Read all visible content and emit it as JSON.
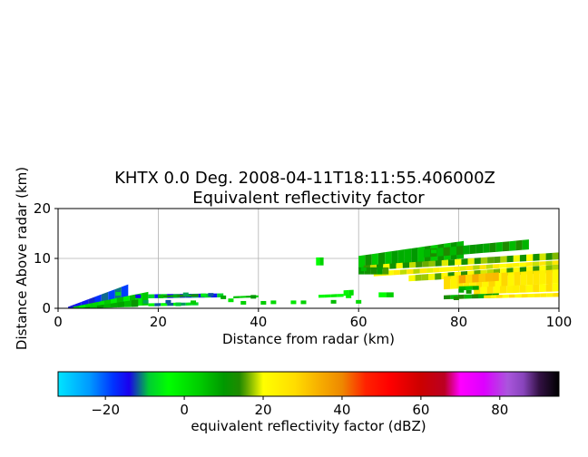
{
  "chart_data": {
    "type": "heatmap",
    "title": [
      "KHTX 0.0 Deg. 2008-04-11T18:11:55.406000Z",
      "Equivalent reflectivity factor"
    ],
    "xlabel": "Distance from radar (km)",
    "ylabel": "Distance Above radar  (km)",
    "xlim": [
      0,
      100
    ],
    "ylim": [
      0,
      20
    ],
    "xticks": [
      0,
      20,
      40,
      60,
      80,
      100
    ],
    "yticks": [
      0,
      10,
      20
    ],
    "grid": true,
    "colorbar": {
      "label": "equivalent reflectivity factor (dBZ)",
      "range": [
        -32,
        95
      ],
      "ticks": [
        -20,
        0,
        20,
        40,
        60,
        80
      ],
      "tick_labels": [
        "−20",
        "0",
        "20",
        "40",
        "60",
        "80"
      ],
      "stops": [
        {
          "v": -32,
          "c": "#00e5ff"
        },
        {
          "v": -24,
          "c": "#0099ff"
        },
        {
          "v": -18,
          "c": "#0033ff"
        },
        {
          "v": -14,
          "c": "#1a00ee"
        },
        {
          "v": -9,
          "c": "#00cc33"
        },
        {
          "v": -4,
          "c": "#00ff00"
        },
        {
          "v": 4,
          "c": "#00cc00"
        },
        {
          "v": 10,
          "c": "#009900"
        },
        {
          "v": 14,
          "c": "#1f8a00"
        },
        {
          "v": 16,
          "c": "#66aa00"
        },
        {
          "v": 20,
          "c": "#ffff00"
        },
        {
          "v": 28,
          "c": "#ffdd00"
        },
        {
          "v": 34,
          "c": "#f7b000"
        },
        {
          "v": 40,
          "c": "#ee8800"
        },
        {
          "v": 46,
          "c": "#ff2200"
        },
        {
          "v": 52,
          "c": "#ff0000"
        },
        {
          "v": 60,
          "c": "#cc0000"
        },
        {
          "v": 66,
          "c": "#bb0022"
        },
        {
          "v": 70,
          "c": "#ff00ff"
        },
        {
          "v": 76,
          "c": "#dd00ff"
        },
        {
          "v": 82,
          "c": "#aa55dd"
        },
        {
          "v": 86,
          "c": "#8844bb"
        },
        {
          "v": 90,
          "c": "#331144"
        },
        {
          "v": 95,
          "c": "#000000"
        }
      ]
    },
    "echoes": [
      {
        "x0": 2,
        "x1": 14,
        "y0_start": 0.0,
        "y0_end": 0.6,
        "y1_start": 0.3,
        "y1_end": 4.8,
        "dbz": -15
      },
      {
        "x0": 3,
        "x1": 18,
        "y0_start": 0.0,
        "y0_end": 0.6,
        "y1_start": 0.3,
        "y1_end": 3.3,
        "dbz": 2
      },
      {
        "x0": 5,
        "x1": 16,
        "y0_start": 0.0,
        "y0_end": 0.3,
        "y1_start": 0.1,
        "y1_end": 1.8,
        "dbz": 8
      },
      {
        "x0": 18,
        "x1": 33,
        "y0_start": 2.0,
        "y0_end": 2.2,
        "y1_start": 2.8,
        "y1_end": 3.0,
        "dbz": -12
      },
      {
        "x0": 18,
        "x1": 28,
        "y0_start": 0.4,
        "y0_end": 0.6,
        "y1_start": 1.0,
        "y1_end": 1.2,
        "dbz": -8
      },
      {
        "x0": 21,
        "x1": 28,
        "y0_start": 2.2,
        "y0_end": 2.4,
        "y1_start": 2.6,
        "y1_end": 2.8,
        "dbz": 10
      },
      {
        "x0": 35,
        "x1": 40,
        "y0_start": 2.0,
        "y0_end": 2.2,
        "y1_start": 2.4,
        "y1_end": 2.6,
        "dbz": 5
      },
      {
        "x0": 52,
        "x1": 57,
        "y0_start": 2.1,
        "y0_end": 2.3,
        "y1_start": 2.7,
        "y1_end": 2.9,
        "dbz": -2
      },
      {
        "x0": 57,
        "x1": 59,
        "y0_start": 2.5,
        "y0_end": 2.6,
        "y1_start": 3.6,
        "y1_end": 3.7,
        "dbz": 0
      },
      {
        "x0": 51.5,
        "x1": 53,
        "y0_start": 8.6,
        "y0_end": 8.6,
        "y1_start": 10.2,
        "y1_end": 10.2,
        "dbz": 0
      },
      {
        "x0": 64,
        "x1": 67,
        "y0_start": 2.2,
        "y0_end": 2.2,
        "y1_start": 3.2,
        "y1_end": 3.2,
        "dbz": 0
      },
      {
        "x0": 60,
        "x1": 81,
        "y0_start": 8.0,
        "y0_end": 10.0,
        "y1_start": 10.5,
        "y1_end": 13.5,
        "dbz": 8
      },
      {
        "x0": 73,
        "x1": 94,
        "y0_start": 10.2,
        "y0_end": 11.8,
        "y1_start": 11.8,
        "y1_end": 13.8,
        "dbz": 10
      },
      {
        "x0": 61,
        "x1": 100,
        "y0_start": 7.6,
        "y0_end": 9.8,
        "y1_start": 8.6,
        "y1_end": 11.2,
        "dbz": 16
      },
      {
        "x0": 63,
        "x1": 100,
        "y0_start": 6.4,
        "y0_end": 8.8,
        "y1_start": 7.4,
        "y1_end": 9.6,
        "dbz": 22
      },
      {
        "x0": 70,
        "x1": 100,
        "y0_start": 5.4,
        "y0_end": 7.2,
        "y1_start": 6.6,
        "y1_end": 8.8,
        "dbz": 18
      },
      {
        "x0": 77,
        "x1": 100,
        "y0_start": 3.8,
        "y0_end": 5.0,
        "y1_start": 6.4,
        "y1_end": 7.8,
        "dbz": 25
      },
      {
        "x0": 80,
        "x1": 88,
        "y0_start": 5.0,
        "y0_end": 5.5,
        "y1_start": 6.6,
        "y1_end": 7.2,
        "dbz": 32
      },
      {
        "x0": 83,
        "x1": 100,
        "y0_start": 2.8,
        "y0_end": 3.4,
        "y1_start": 4.2,
        "y1_end": 5.0,
        "dbz": 24
      },
      {
        "x0": 77,
        "x1": 88,
        "y0_start": 1.8,
        "y0_end": 2.1,
        "y1_start": 2.6,
        "y1_end": 3.0,
        "dbz": 10
      },
      {
        "x0": 85,
        "x1": 100,
        "y0_start": 2.0,
        "y0_end": 2.3,
        "y1_start": 2.6,
        "y1_end": 3.1,
        "dbz": 24
      },
      {
        "x0": 80,
        "x1": 84,
        "y0_start": 3.6,
        "y0_end": 3.7,
        "y1_start": 4.4,
        "y1_end": 4.5,
        "dbz": 6
      },
      {
        "x0": 60,
        "x1": 66,
        "y0_start": 6.8,
        "y0_end": 6.8,
        "y1_start": 8.2,
        "y1_end": 8.2,
        "dbz": 12
      }
    ],
    "speckles": [
      {
        "x": 16,
        "y": 2.4,
        "dbz": -14
      },
      {
        "x": 17.5,
        "y": 1.3,
        "dbz": -10
      },
      {
        "x": 20.5,
        "y": 2.4,
        "dbz": 6
      },
      {
        "x": 22,
        "y": 1.3,
        "dbz": -12
      },
      {
        "x": 24,
        "y": 0.8,
        "dbz": -9
      },
      {
        "x": 25.5,
        "y": 2.8,
        "dbz": -10
      },
      {
        "x": 27,
        "y": 1.2,
        "dbz": 4
      },
      {
        "x": 29,
        "y": 2.6,
        "dbz": -6
      },
      {
        "x": 30.5,
        "y": 2.7,
        "dbz": -12
      },
      {
        "x": 33,
        "y": 2.2,
        "dbz": 8
      },
      {
        "x": 34.5,
        "y": 1.6,
        "dbz": 0
      },
      {
        "x": 37,
        "y": 1.1,
        "dbz": 3
      },
      {
        "x": 39,
        "y": 2.3,
        "dbz": 10
      },
      {
        "x": 41,
        "y": 1.1,
        "dbz": 4
      },
      {
        "x": 43,
        "y": 1.2,
        "dbz": 2
      },
      {
        "x": 47,
        "y": 1.2,
        "dbz": 0
      },
      {
        "x": 49,
        "y": 1.2,
        "dbz": 3
      },
      {
        "x": 55,
        "y": 1.3,
        "dbz": 6
      },
      {
        "x": 58,
        "y": 2.4,
        "dbz": -1
      },
      {
        "x": 60,
        "y": 1.3,
        "dbz": 2
      },
      {
        "x": 80.5,
        "y": 3.5,
        "dbz": 8
      },
      {
        "x": 82,
        "y": 3.3,
        "dbz": 12
      },
      {
        "x": 79.5,
        "y": 2.0,
        "dbz": 14
      },
      {
        "x": 61,
        "y": 7.8,
        "dbz": 6
      },
      {
        "x": 75,
        "y": 11.4,
        "dbz": 4
      },
      {
        "x": 12,
        "y": 2.9,
        "dbz": -8
      }
    ]
  }
}
